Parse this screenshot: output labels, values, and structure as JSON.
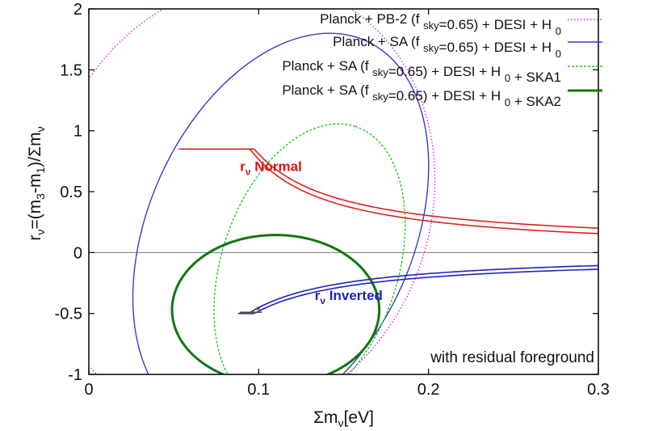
{
  "chart_data": {
    "type": "line",
    "xlabel_parts": [
      "Σm",
      "ν",
      "[eV]"
    ],
    "ylabel_parts": [
      "r",
      "ν",
      "=(m",
      "3",
      "-m",
      "1",
      ")/Σm",
      "ν"
    ],
    "xlim": [
      0,
      0.3
    ],
    "ylim": [
      -1,
      2
    ],
    "xticks": [
      0,
      0.1,
      0.2,
      0.3
    ],
    "xtick_labels": [
      "0",
      "0.1",
      "0.2",
      "0.3"
    ],
    "yticks": [
      -1,
      -0.5,
      0,
      0.5,
      1,
      1.5,
      2
    ],
    "ytick_labels": [
      "-1",
      "-0.5",
      "0",
      "0.5",
      "1",
      "1.5",
      "2"
    ],
    "grid": false,
    "legend_position": "top-right",
    "annotations": {
      "normal": {
        "label": "r",
        "sub": "ν",
        "rest": " Normal",
        "color": "#dd1111",
        "x": 0.089,
        "y": 0.67
      },
      "inverted": {
        "label": "r",
        "sub": "ν",
        "rest": " Inverted",
        "color": "#2222bb",
        "x": 0.133,
        "y": -0.39
      },
      "foreground_note": "with residual foreground",
      "fiducial_marker": "×"
    },
    "series": [
      {
        "name_parts": [
          [
            "Planck + PB-2 (f ",
            ""
          ],
          [
            "sky",
            "sub"
          ],
          [
            "=0.65) + DESI + H ",
            ""
          ],
          [
            "0",
            "sub"
          ]
        ],
        "color": "#dd22dd",
        "style": "dotted",
        "width": 1.4,
        "ellipse": {
          "cx": 0.088,
          "cy": 0.4,
          "a": 0.133,
          "b": 0.113,
          "angle_deg": 69
        }
      },
      {
        "name_parts": [
          [
            "Planck + SA (f ",
            ""
          ],
          [
            "sky",
            "sub"
          ],
          [
            "=0.65) + DESI + H ",
            ""
          ],
          [
            "0",
            "sub"
          ]
        ],
        "color": "#3a3ac4",
        "style": "solid",
        "width": 1.4,
        "ellipse": {
          "cx": 0.113,
          "cy": 0.17,
          "a": 0.123,
          "b": 0.078,
          "angle_deg": 66
        }
      },
      {
        "name_parts": [
          [
            "Planck + SA (f ",
            ""
          ],
          [
            "sky",
            "sub"
          ],
          [
            "=0.65) + DESI + H ",
            ""
          ],
          [
            "0",
            "sub"
          ],
          [
            " + SKA1",
            ""
          ]
        ],
        "color": "#22cc22",
        "style": "dashed",
        "width": 1.4,
        "ellipse": {
          "cx": 0.13,
          "cy": -0.12,
          "a": 0.087,
          "b": 0.052,
          "angle_deg": 72
        }
      },
      {
        "name_parts": [
          [
            "Planck + SA (f ",
            ""
          ],
          [
            "sky",
            "sub"
          ],
          [
            "=0.65) + DESI + H ",
            ""
          ],
          [
            "0",
            "sub"
          ],
          [
            " + SKA2",
            ""
          ]
        ],
        "color": "#117711",
        "style": "solid",
        "width": 3,
        "ellipse": {
          "cx": 0.11,
          "cy": -0.47,
          "a": 0.061,
          "b": 0.044,
          "angle_deg": 0
        }
      }
    ],
    "theory_curves": {
      "normal": {
        "color": "#dd2222",
        "x_start": 0.059,
        "x_end": 0.3,
        "lower_start_y": 0.85,
        "upper_start_y": 0.85
      },
      "inverted": {
        "color": "#2222bb",
        "x_start": 0.088,
        "x_end": 0.3,
        "start_y": -0.49,
        "end_y": -0.03
      },
      "zero_line": {
        "y": 0,
        "color": "#777777"
      }
    },
    "fiducial": {
      "x": 0.1,
      "y": -0.46
    }
  }
}
